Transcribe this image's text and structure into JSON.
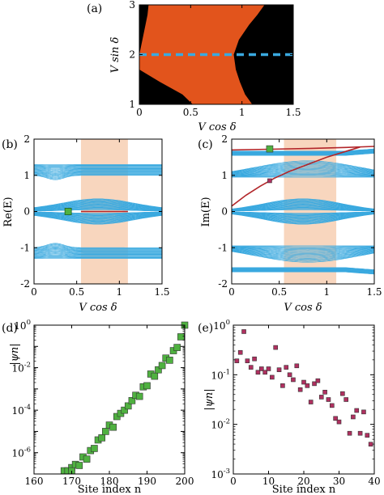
{
  "chart_data": [
    {
      "id": "a",
      "type": "heatmap",
      "panel_label": "(a)",
      "xlabel": "V cos δ",
      "ylabel": "V sin δ",
      "xlim": [
        0,
        1.5
      ],
      "ylim": [
        1,
        3
      ],
      "xticks": [
        "0",
        "0.5",
        "1",
        "1.5"
      ],
      "yticks": [
        "1",
        "2",
        "3"
      ],
      "colors": {
        "region": "#E2541C",
        "background": "#000000",
        "cut": "#3AA9DF"
      },
      "region_left_boundary": {
        "y": [
          1,
          1.2,
          1.45,
          1.7,
          2.0,
          2.3,
          2.6,
          2.8,
          3.0
        ],
        "x": [
          0.52,
          0.42,
          0.2,
          0.0,
          0.0,
          0.0,
          0.0,
          0.0,
          0.0
        ]
      },
      "region_left_edge_x": [
        0.0,
        0.0,
        0.0,
        0.0,
        0.0,
        0.03,
        0.06,
        0.08,
        0.09
      ],
      "region_right_boundary": {
        "y": [
          1,
          1.2,
          1.45,
          1.7,
          2.0,
          2.3,
          2.6,
          2.8,
          3.0
        ],
        "x": [
          1.1,
          1.03,
          0.98,
          0.94,
          0.92,
          0.97,
          1.07,
          1.15,
          1.22
        ]
      },
      "cut_line_y": 2.0
    },
    {
      "id": "b",
      "type": "line",
      "panel_label": "(b)",
      "xlabel": "V cos δ",
      "ylabel": "Re(E)",
      "xlim": [
        0,
        1.5
      ],
      "ylim": [
        -2,
        2
      ],
      "xticks": [
        "0",
        "0.5",
        "1",
        "1.5"
      ],
      "yticks": [
        "-2",
        "-1",
        "0",
        "1",
        "2"
      ],
      "shaded_x": [
        0.55,
        1.1
      ],
      "marker": {
        "x": 0.4,
        "y": 0.0
      },
      "colors": {
        "bands": "#3AA9DF",
        "edge": "#B2262A",
        "shade": "#F8D6BE",
        "marker": "#4FB140"
      }
    },
    {
      "id": "c",
      "type": "line",
      "panel_label": "(c)",
      "xlabel": "V cos δ",
      "ylabel": "Im(E)",
      "xlim": [
        0,
        1.5
      ],
      "ylim": [
        -2,
        2
      ],
      "xticks": [
        "0",
        "0.5",
        "1",
        "1.5"
      ],
      "yticks": [
        "-2",
        "-1",
        "0",
        "1",
        "2"
      ],
      "shaded_x": [
        0.55,
        1.1
      ],
      "markers": [
        {
          "x": 0.4,
          "y": 1.73,
          "color": "#4FB140"
        },
        {
          "x": 0.4,
          "y": 0.85,
          "color": "#B03060"
        }
      ],
      "edge_lines": [
        {
          "x": [
            0,
            0.4,
            0.8,
            1.2,
            1.5
          ],
          "y": [
            1.7,
            1.72,
            1.74,
            1.77,
            1.8
          ]
        },
        {
          "x": [
            0.0,
            0.15,
            0.3,
            0.45,
            0.6,
            0.8,
            1.0,
            1.2,
            1.35
          ],
          "y": [
            0.15,
            0.45,
            0.7,
            0.92,
            1.1,
            1.3,
            1.5,
            1.66,
            1.78
          ]
        }
      ],
      "colors": {
        "bands": "#3AA9DF",
        "edge": "#B2262A",
        "shade": "#F8D6BE"
      }
    },
    {
      "id": "d",
      "type": "scatter",
      "panel_label": "(d)",
      "xlabel": "Site index n",
      "ylabel": "|ψn|",
      "xlim": [
        160,
        200
      ],
      "ylog": true,
      "ylim_exp": [
        -7,
        0
      ],
      "xticks": [
        "160",
        "170",
        "180",
        "190",
        "200"
      ],
      "ytick_exps": [
        -6,
        -4,
        -2,
        0
      ],
      "color": "#4FB140",
      "x": [
        168,
        169,
        170,
        170,
        171,
        172,
        173,
        174,
        175,
        176,
        177,
        178,
        179,
        180,
        181,
        182,
        183,
        184,
        185,
        186,
        187,
        188,
        189,
        190,
        191,
        192,
        193,
        194,
        195,
        196,
        197,
        198,
        199,
        200
      ],
      "y_exp": [
        -6.85,
        -6.85,
        -6.7,
        -6.85,
        -6.55,
        -6.6,
        -6.2,
        -6.3,
        -5.9,
        -5.8,
        -5.4,
        -5.3,
        -5.0,
        -4.7,
        -4.8,
        -4.3,
        -4.15,
        -4.0,
        -3.8,
        -3.55,
        -3.3,
        -3.35,
        -2.9,
        -2.85,
        -2.3,
        -2.4,
        -2.1,
        -1.9,
        -1.55,
        -1.65,
        -1.2,
        -1.05,
        -0.55,
        0.0
      ]
    },
    {
      "id": "e",
      "type": "scatter",
      "panel_label": "(e)",
      "xlabel": "Site index n",
      "ylabel": "|ψn|",
      "xlim": [
        0,
        40
      ],
      "ylog": true,
      "ylim_exp": [
        -3,
        0
      ],
      "xticks": [
        "0",
        "10",
        "20",
        "30",
        "40"
      ],
      "ytick_exps": [
        -3,
        -2,
        -1,
        0
      ],
      "color": "#B03060",
      "x": [
        1,
        2,
        3,
        4,
        5,
        6,
        7,
        8,
        9,
        10,
        11,
        12,
        13,
        14,
        15,
        16,
        17,
        18,
        19,
        20,
        21,
        22,
        23,
        24,
        25,
        26,
        27,
        28,
        29,
        30,
        31,
        32,
        33,
        34,
        35,
        36,
        37,
        38,
        39
      ],
      "y_exp": [
        -0.72,
        -0.55,
        -0.13,
        -0.72,
        -0.85,
        -0.68,
        -0.95,
        -0.88,
        -0.95,
        -0.88,
        -1.05,
        -0.45,
        -0.9,
        -1.22,
        -0.85,
        -1.0,
        -1.1,
        -0.82,
        -1.3,
        -1.15,
        -1.22,
        -1.55,
        -1.18,
        -1.12,
        -1.45,
        -1.35,
        -1.5,
        -1.62,
        -1.88,
        -1.95,
        -1.38,
        -1.5,
        -2.18,
        -1.85,
        -1.72,
        -2.18,
        -1.75,
        -2.22,
        -2.4
      ]
    }
  ]
}
